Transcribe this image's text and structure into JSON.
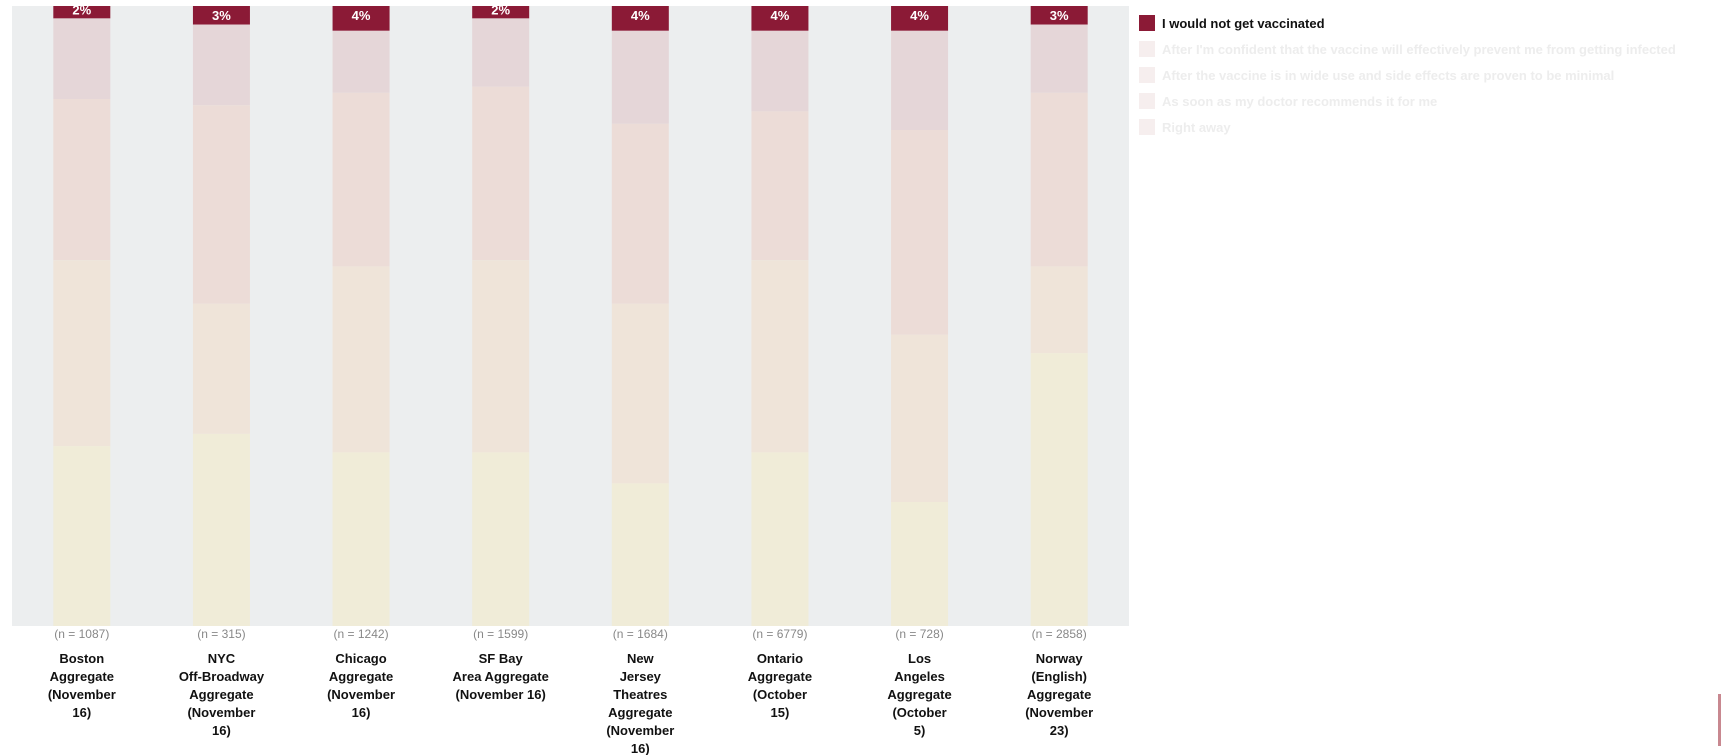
{
  "chart_data": {
    "type": "bar",
    "stacked": true,
    "orientation": "vertical",
    "normalized_percent": true,
    "categories": [
      "Boston Aggregate (November 16)",
      "NYC Off-Broadway Aggregate (November 16)",
      "Chicago Aggregate (November 16)",
      "SF Bay Area Aggregate (November 16)",
      "New Jersey Theatres Aggregate (November 16)",
      "Ontario Aggregate (October 15)",
      "Los Angeles Aggregate (October 5)",
      "Norway (English) Aggregate (November 23)"
    ],
    "category_lines": [
      [
        "Boston",
        "Aggregate",
        "(November",
        "16)"
      ],
      [
        "NYC",
        "Off-Broadway",
        "Aggregate",
        "(November",
        "16)"
      ],
      [
        "Chicago",
        "Aggregate",
        "(November",
        "16)"
      ],
      [
        "SF Bay",
        "Area Aggregate",
        "(November 16)"
      ],
      [
        "New",
        "Jersey",
        "Theatres",
        "Aggregate",
        "(November",
        "16)"
      ],
      [
        "Ontario",
        "Aggregate",
        "(October",
        "15)"
      ],
      [
        "Los",
        "Angeles",
        "Aggregate",
        "(October",
        "5)"
      ],
      [
        "Norway",
        "(English)",
        "Aggregate",
        "(November",
        "23)"
      ]
    ],
    "sample_sizes": [
      "(n = 1087)",
      "(n = 315)",
      "(n = 1242)",
      "(n = 1599)",
      "(n = 1684)",
      "(n = 6779)",
      "(n = 728)",
      "(n = 2858)"
    ],
    "series": [
      {
        "name": "I would not get vaccinated",
        "color": "#8b1a36",
        "highlighted": true,
        "values": [
          2,
          3,
          4,
          2,
          4,
          4,
          4,
          3
        ],
        "labels": [
          "2%",
          "3%",
          "4%",
          "2%",
          "4%",
          "4%",
          "4%",
          "3%"
        ]
      },
      {
        "name": "After I'm confident that the vaccine will effectively prevent me from getting infected",
        "color": "#e5d6d8",
        "highlighted": false,
        "values": [
          13,
          13,
          10,
          11,
          15,
          13,
          16,
          11
        ]
      },
      {
        "name": "After the vaccine is in wide use and side effects are proven to be minimal",
        "color": "#ecdcd7",
        "highlighted": false,
        "values": [
          26,
          32,
          28,
          28,
          29,
          24,
          33,
          28
        ]
      },
      {
        "name": "As soon as my doctor recommends it for me",
        "color": "#efe4d9",
        "highlighted": false,
        "values": [
          30,
          21,
          30,
          31,
          29,
          31,
          27,
          14
        ]
      },
      {
        "name": "Right away",
        "color": "#f0ecd8",
        "highlighted": false,
        "values": [
          29,
          31,
          28,
          28,
          23,
          28,
          20,
          44
        ]
      }
    ],
    "ylim": [
      0,
      100
    ],
    "legend_position": "right",
    "plot_background": "#eceeef"
  }
}
